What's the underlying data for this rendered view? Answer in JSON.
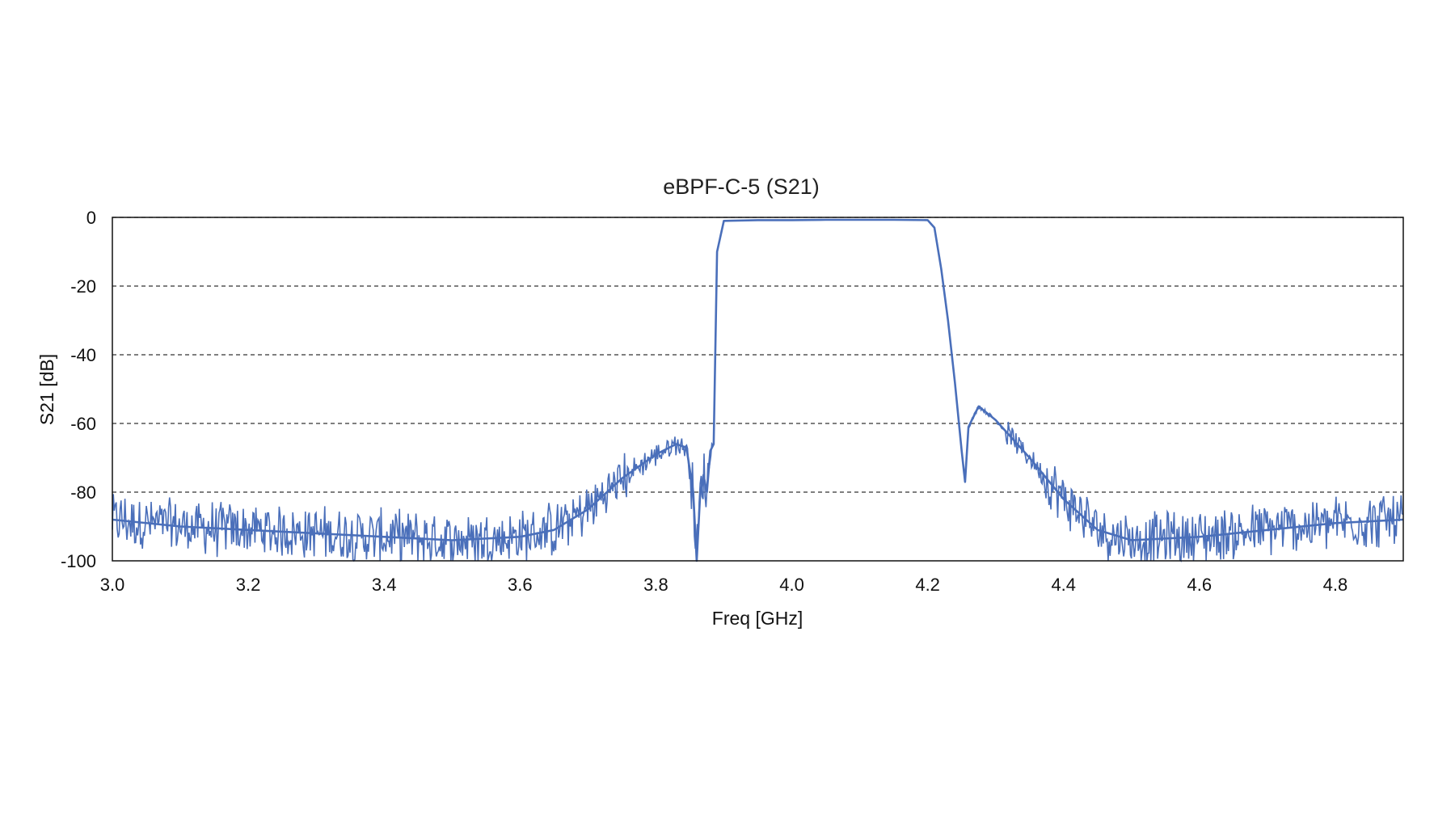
{
  "chart_data": {
    "type": "line",
    "title": "eBPF-C-5 (S21)",
    "xlabel": "Freq [GHz]",
    "ylabel": "S21 [dB]",
    "xlim": [
      3.0,
      4.9
    ],
    "ylim": [
      -100,
      0
    ],
    "xticks": [
      "3.0",
      "3.2",
      "3.4",
      "3.6",
      "3.8",
      "4.0",
      "4.2",
      "4.4",
      "4.6",
      "4.8"
    ],
    "yticks": [
      "0",
      "-20",
      "-40",
      "-60",
      "-80",
      "-100"
    ],
    "grid": "horizontal dashed",
    "legend": "none",
    "series": [
      {
        "color": "#4a6fba",
        "x": [
          3.0,
          3.1,
          3.2,
          3.3,
          3.4,
          3.5,
          3.6,
          3.65,
          3.7,
          3.75,
          3.8,
          3.83,
          3.845,
          3.855,
          3.86,
          3.865,
          3.87,
          3.875,
          3.88,
          3.885,
          3.89,
          3.9,
          3.95,
          4.0,
          4.05,
          4.1,
          4.15,
          4.2,
          4.21,
          4.22,
          4.23,
          4.24,
          4.25,
          4.255,
          4.26,
          4.275,
          4.3,
          4.35,
          4.4,
          4.45,
          4.5,
          4.6,
          4.7,
          4.8,
          4.9
        ],
        "y": [
          -88,
          -90,
          -91,
          -92,
          -93,
          -94,
          -93,
          -91,
          -85,
          -76,
          -69,
          -66,
          -67,
          -80,
          -100,
          -81,
          -75,
          -80,
          -68,
          -66,
          -10,
          -1,
          -0.8,
          -0.8,
          -0.7,
          -0.7,
          -0.7,
          -0.8,
          -3,
          -15,
          -30,
          -48,
          -68,
          -77,
          -61,
          -55,
          -59,
          -70,
          -82,
          -91,
          -94,
          -93,
          -91,
          -89,
          -88
        ]
      }
    ]
  }
}
